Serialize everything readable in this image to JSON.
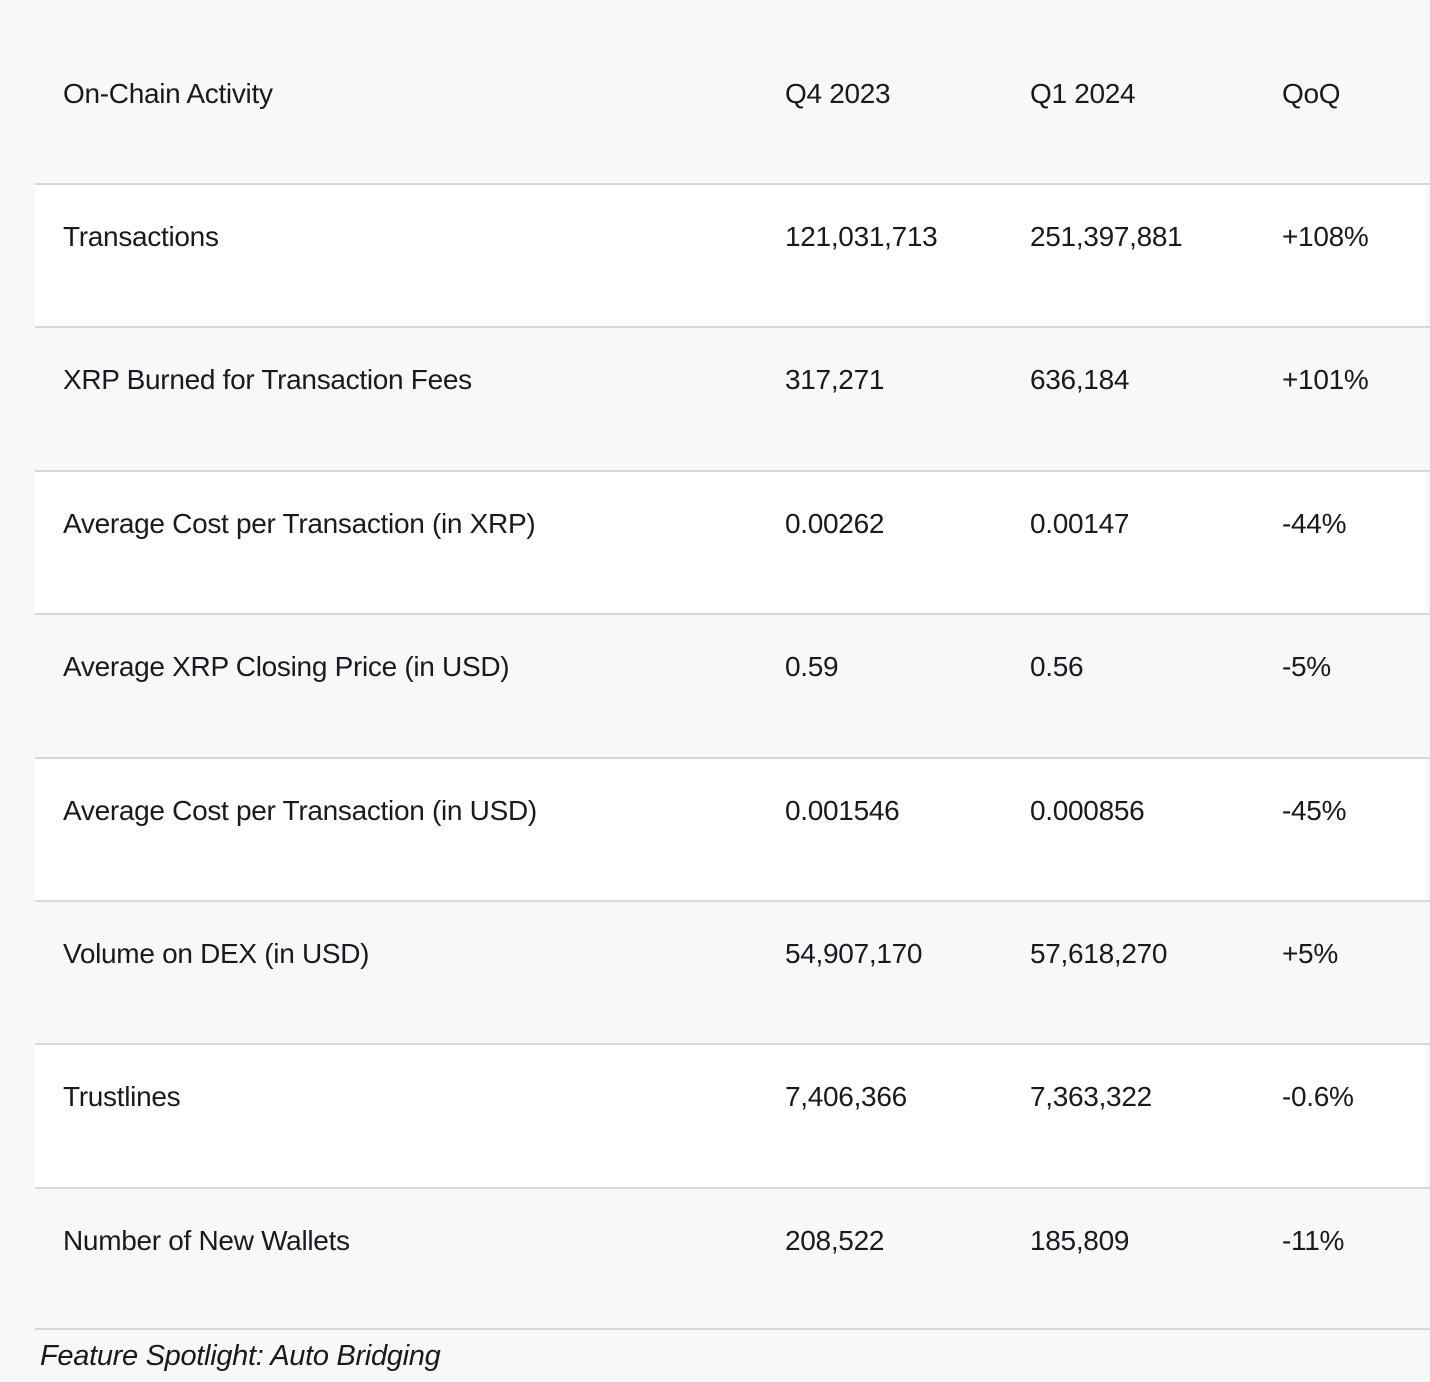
{
  "colors": {
    "page_bg": "#f8f8f9",
    "row_white": "#ffffff",
    "divider": "#d8d8db",
    "text": "#171b21"
  },
  "table": {
    "columns": [
      "On-Chain Activity",
      "Q4 2023",
      "Q1 2024",
      "QoQ"
    ],
    "rows": [
      {
        "label": "Transactions",
        "q4": "121,031,713",
        "q1": "251,397,881",
        "qoq": "+108%"
      },
      {
        "label": "XRP Burned for Transaction Fees",
        "q4": "317,271",
        "q1": "636,184",
        "qoq": "+101%"
      },
      {
        "label": "Average Cost per Transaction (in XRP)",
        "q4": "0.00262",
        "q1": "0.00147",
        "qoq": "-44%"
      },
      {
        "label": "Average XRP Closing Price (in USD)",
        "q4": "0.59",
        "q1": "0.56",
        "qoq": "-5%"
      },
      {
        "label": "Average Cost per Transaction (in USD)",
        "q4": "0.001546",
        "q1": "0.000856",
        "qoq": "-45%"
      },
      {
        "label": "Volume on DEX (in USD)",
        "q4": "54,907,170",
        "q1": "57,618,270",
        "qoq": "+5%"
      },
      {
        "label": "Trustlines",
        "q4": "7,406,366",
        "q1": "7,363,322",
        "qoq": "-0.6%"
      },
      {
        "label": "Number of New Wallets",
        "q4": "208,522",
        "q1": "185,809",
        "qoq": "-11%"
      }
    ]
  },
  "footer": {
    "caption": "Feature Spotlight: Auto Bridging"
  }
}
